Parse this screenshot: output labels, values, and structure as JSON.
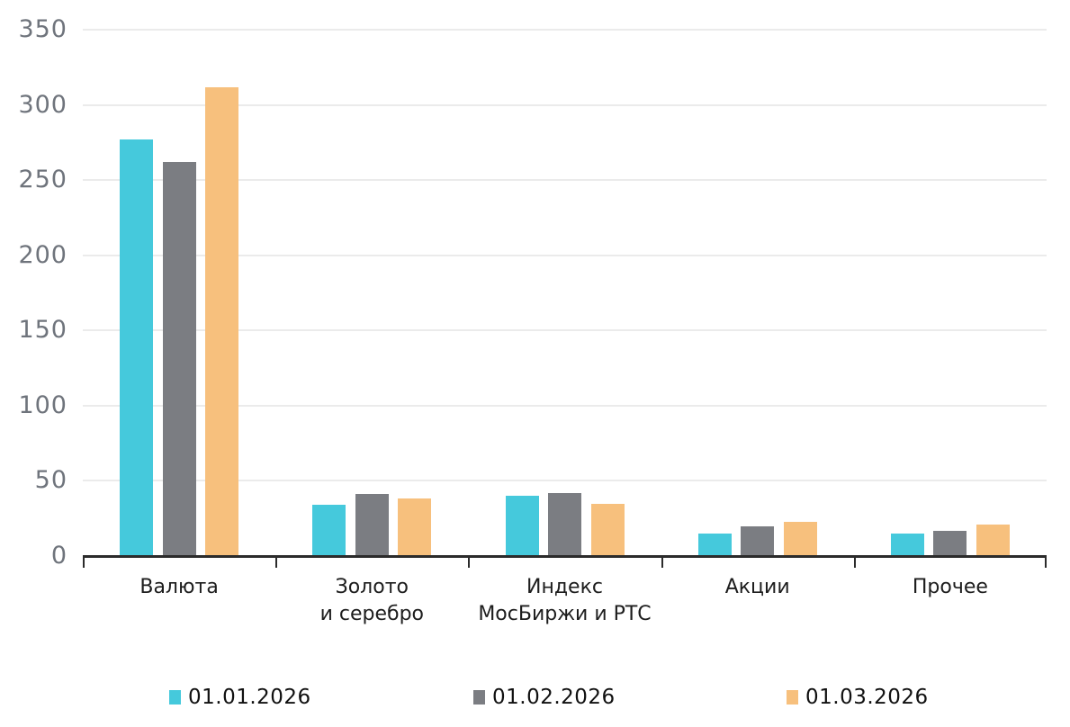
{
  "chart_data": {
    "type": "bar",
    "title": "",
    "xlabel": "",
    "ylabel": "",
    "categories": [
      [
        "Валюта"
      ],
      [
        "Золото",
        "и серебро"
      ],
      [
        "Индекс",
        "МосБиржи и РТС"
      ],
      [
        "Акции"
      ],
      [
        "Прочее"
      ]
    ],
    "series": [
      {
        "name": "01.01.2026",
        "color": "#45C9DC",
        "values": [
          277,
          34,
          40,
          15,
          15
        ]
      },
      {
        "name": "01.02.2026",
        "color": "#7B7D82",
        "values": [
          262,
          41,
          42,
          20,
          17
        ]
      },
      {
        "name": "01.03.2026",
        "color": "#F7C07D",
        "values": [
          312,
          38,
          35,
          23,
          21
        ]
      }
    ],
    "ylim": [
      0,
      350
    ],
    "yticks": [
      0,
      50,
      100,
      150,
      200,
      250,
      300,
      350
    ],
    "grid": "horizontal",
    "legend_position": "bottom"
  },
  "colors": {
    "background": "#ffffff",
    "gridline": "#ebebeb",
    "axis": "#2b2b2b",
    "y_label_text": "#6f747c",
    "category_text": "#1d1d1d",
    "legend_text": "#111111"
  }
}
